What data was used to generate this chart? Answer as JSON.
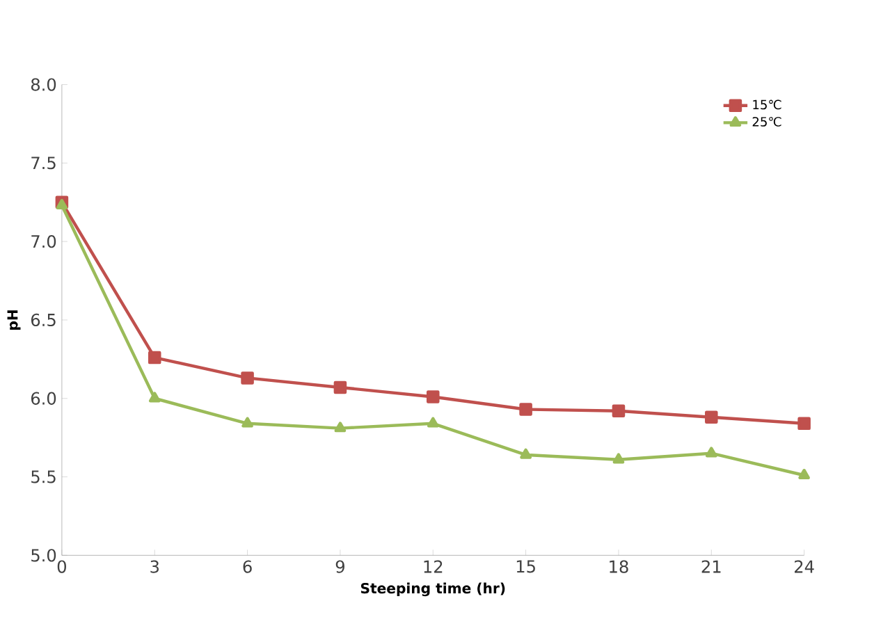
{
  "chart_data": {
    "type": "line",
    "xlabel": "Steeping time (hr)",
    "ylabel": "pH",
    "x": [
      0,
      3,
      6,
      9,
      12,
      15,
      18,
      21,
      24
    ],
    "series": [
      {
        "name": "15℃",
        "color": "#c0504d",
        "marker": "square",
        "values": [
          7.25,
          6.26,
          6.13,
          6.07,
          6.01,
          5.93,
          5.92,
          5.88,
          5.84
        ]
      },
      {
        "name": "25℃",
        "color": "#9bbb59",
        "marker": "triangle",
        "values": [
          7.23,
          6.0,
          5.84,
          5.81,
          5.84,
          5.64,
          5.61,
          5.65,
          5.51
        ]
      }
    ],
    "xlim": [
      0,
      24
    ],
    "xticks": [
      0,
      3,
      6,
      9,
      12,
      15,
      18,
      21,
      24
    ],
    "ylim": [
      5,
      8
    ],
    "yticks": [
      {
        "value": 5,
        "label": "5.0"
      },
      {
        "value": 5.5,
        "label": "5.5"
      },
      {
        "value": 6,
        "label": "6.0"
      },
      {
        "value": 6.5,
        "label": "6.5"
      },
      {
        "value": 7,
        "label": "7.0"
      },
      {
        "value": 7.5,
        "label": "7.5"
      },
      {
        "value": 8,
        "label": "8.0"
      }
    ],
    "legend": "top right",
    "grid": false,
    "line_style": "solid"
  }
}
